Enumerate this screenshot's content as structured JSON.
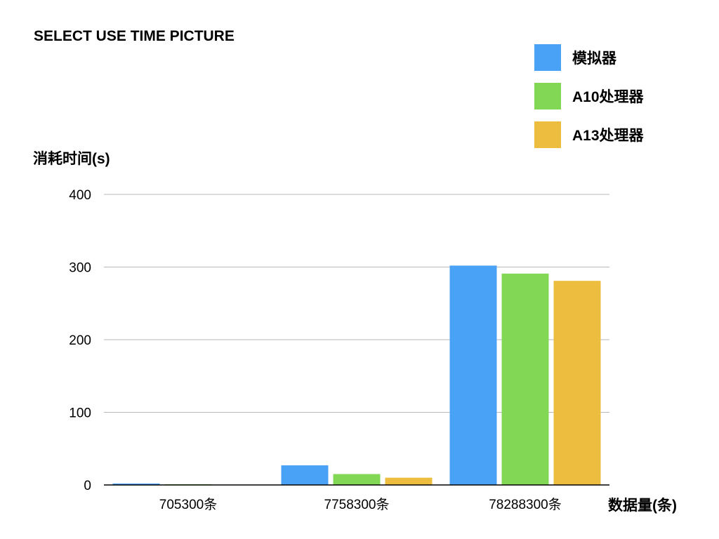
{
  "chart_data": {
    "type": "bar",
    "title": "SELECT USE TIME PICTURE",
    "ylabel": "消耗时间(s)",
    "xlabel": "数据量(条)",
    "ylim": [
      0,
      400
    ],
    "yticks": [
      0,
      100,
      200,
      300,
      400
    ],
    "grid": true,
    "legend_position": "top-right",
    "categories": [
      "705300条",
      "7758300条",
      "78288300条"
    ],
    "series": [
      {
        "name": "模拟器",
        "color": "#4aa2f7",
        "values": [
          2,
          27,
          302
        ]
      },
      {
        "name": "A10处理器",
        "color": "#82d754",
        "values": [
          1,
          15,
          291
        ]
      },
      {
        "name": "A13处理器",
        "color": "#ecbd3f",
        "values": [
          0,
          10,
          281
        ]
      }
    ]
  }
}
